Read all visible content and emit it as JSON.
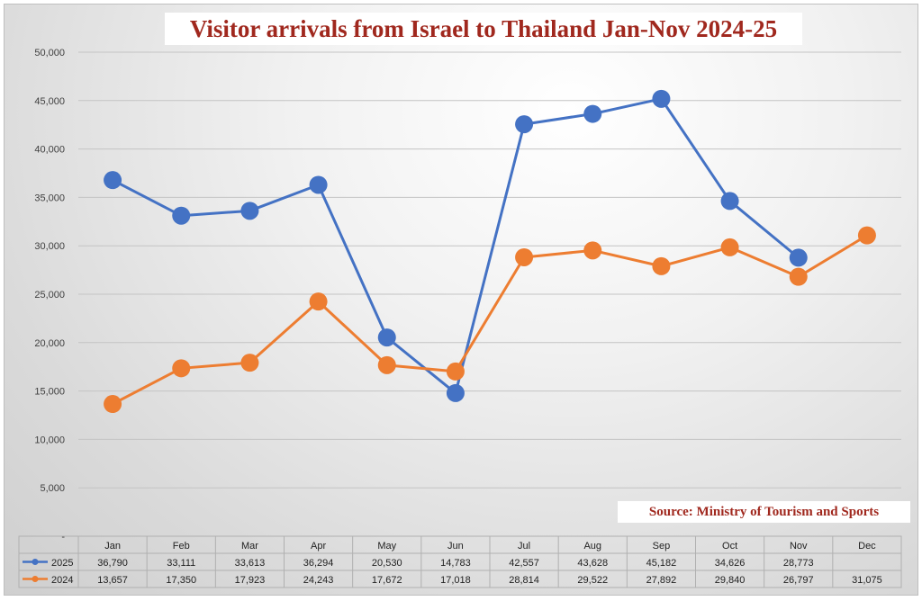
{
  "chart_data": {
    "type": "line",
    "title": "Visitor arrivals from Israel to Thailand Jan-Nov 2024-25",
    "source": "Source: Ministry of Tourism and Sports",
    "categories": [
      "Jan",
      "Feb",
      "Mar",
      "Apr",
      "May",
      "Jun",
      "Jul",
      "Aug",
      "Sep",
      "Oct",
      "Nov",
      "Dec"
    ],
    "ylim": [
      0,
      50000
    ],
    "yticks": [
      "-",
      "5,000",
      "10,000",
      "15,000",
      "20,000",
      "25,000",
      "30,000",
      "35,000",
      "40,000",
      "45,000",
      "50,000"
    ],
    "grid": true,
    "legend": "data-table",
    "series": [
      {
        "name": "2025",
        "color": "#4472c4",
        "values": [
          36790,
          33111,
          33613,
          36294,
          20530,
          14783,
          42557,
          43628,
          45182,
          34626,
          28773,
          null
        ],
        "labels": [
          "36,790",
          "33,111",
          "33,613",
          "36,294",
          "20,530",
          "14,783",
          "42,557",
          "43,628",
          "45,182",
          "34,626",
          "28,773",
          ""
        ]
      },
      {
        "name": "2024",
        "color": "#ed7d31",
        "values": [
          13657,
          17350,
          17923,
          24243,
          17672,
          17018,
          28814,
          29522,
          27892,
          29840,
          26797,
          31075
        ],
        "labels": [
          "13,657",
          "17,350",
          "17,923",
          "24,243",
          "17,672",
          "17,018",
          "28,814",
          "29,522",
          "27,892",
          "29,840",
          "26,797",
          "31,075"
        ]
      }
    ]
  }
}
